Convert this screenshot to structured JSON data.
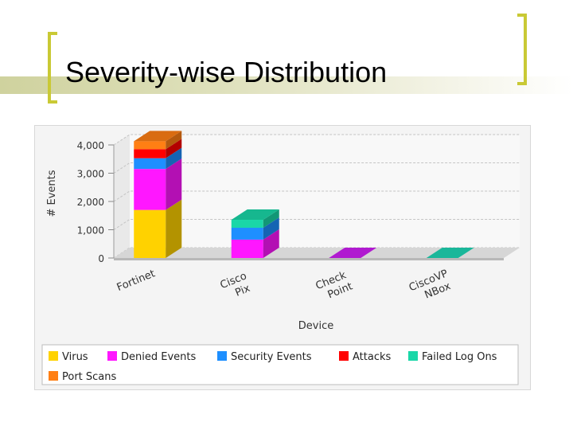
{
  "slide": {
    "title": "Severity-wise Distribution"
  },
  "chart_data": {
    "type": "bar",
    "stacked": true,
    "categories": [
      "Fortinet",
      "Cisco Pix",
      "Check Point",
      "CiscoVP NBox"
    ],
    "series": [
      {
        "name": "Virus",
        "color": "#ffd200",
        "values": [
          1700,
          0,
          0,
          0
        ]
      },
      {
        "name": "Denied Events",
        "color": "#ff17ff",
        "values": [
          1450,
          650,
          0,
          0
        ]
      },
      {
        "name": "Security Events",
        "color": "#1e8fff",
        "values": [
          380,
          420,
          0,
          0
        ]
      },
      {
        "name": "Attacks",
        "color": "#ff0000",
        "values": [
          320,
          0,
          0,
          0
        ]
      },
      {
        "name": "Failed Log Ons",
        "color": "#1ad7a8",
        "values": [
          0,
          0,
          0,
          0
        ]
      },
      {
        "name": "Port Scans",
        "color": "#ff7f14",
        "values": [
          0,
          0,
          0,
          0
        ]
      }
    ],
    "yticks": [
      "0",
      "1,000",
      "2,000",
      "3,000",
      "4,000"
    ],
    "ylim": [
      0,
      4000
    ],
    "xlabel": "Device",
    "ylabel": "# Events",
    "grid": true,
    "legend_position": "bottom"
  }
}
